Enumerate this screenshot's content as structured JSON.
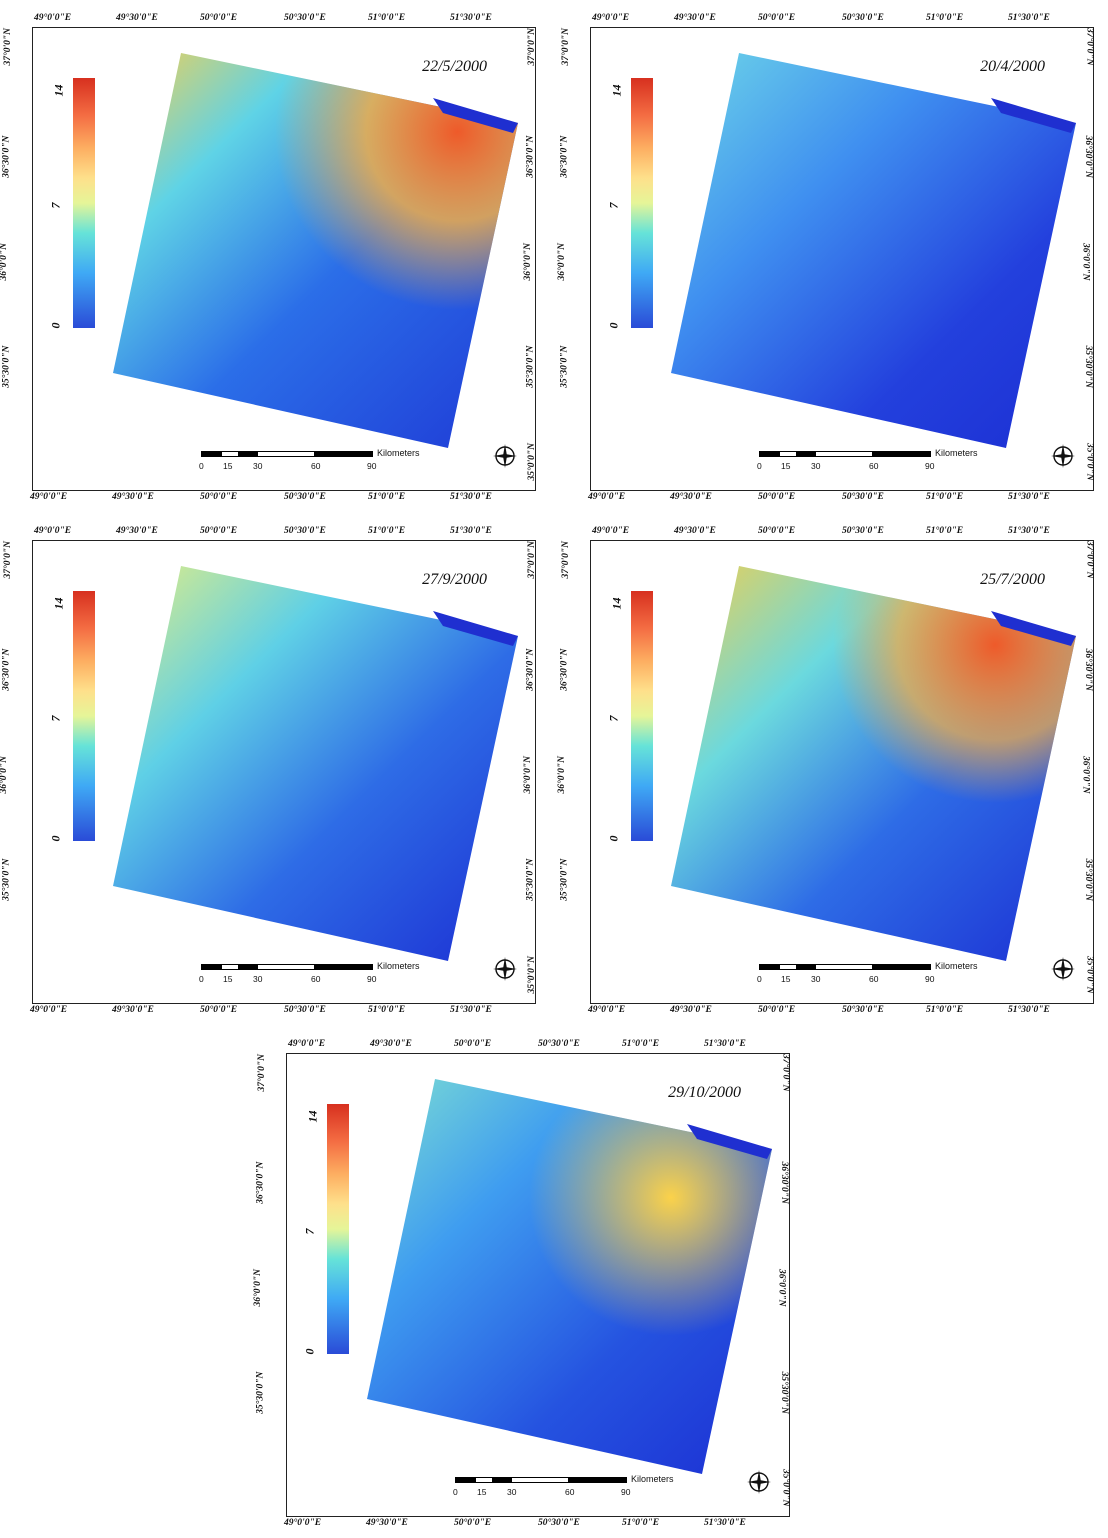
{
  "panels": [
    {
      "date": "22/5/2000",
      "top_ticks": [
        "49°0'0\"E",
        "49°30'0\"E",
        "50°0'0\"E",
        "50°30'0\"E",
        "51°0'0\"E",
        "51°30'0\"E"
      ],
      "bottom_ticks": [
        "49°0'0\"E",
        "49°30'0\"E",
        "50°0'0\"E",
        "50°30'0\"E",
        "51°0'0\"E",
        "51°30'0\"E"
      ],
      "left_ticks": [
        "37°0'0\"N",
        "36°30'0\"N",
        "36°0'0\"N",
        "35°30'0\"N"
      ],
      "right_ticks": [
        "37°0'0\"N",
        "36°30'0\"N",
        "36°0'0\"N",
        "35°30'0\"N",
        "35°0'0\"N"
      ],
      "legend": {
        "max": "14",
        "mid": "7",
        "min": "0"
      },
      "scale": {
        "ticks": [
          "0",
          "15",
          "30",
          "60",
          "90"
        ],
        "unit": "Kilometers"
      }
    },
    {
      "date": "20/4/2000",
      "top_ticks": [
        "49°0'0\"E",
        "49°30'0\"E",
        "50°0'0\"E",
        "50°30'0\"E",
        "51°0'0\"E",
        "51°30'0\"E"
      ],
      "bottom_ticks": [
        "49°0'0\"E",
        "49°30'0\"E",
        "50°0'0\"E",
        "50°30'0\"E",
        "51°0'0\"E",
        "51°30'0\"E"
      ],
      "left_ticks": [
        "37°0'0\"N",
        "36°30'0\"N",
        "36°0'0\"N",
        "35°30'0\"N"
      ],
      "right_ticks": [
        "37°0'0\"N",
        "36°30'0\"N",
        "36°0'0\"N",
        "35°30'0\"N",
        "35°0'0\"N"
      ],
      "legend": {
        "max": "14",
        "mid": "7",
        "min": "0"
      },
      "scale": {
        "ticks": [
          "0",
          "15",
          "30",
          "60",
          "90"
        ],
        "unit": "Kilometers"
      }
    },
    {
      "date": "27/9/2000",
      "top_ticks": [
        "49°0'0\"E",
        "49°30'0\"E",
        "50°0'0\"E",
        "50°30'0\"E",
        "51°0'0\"E",
        "51°30'0\"E"
      ],
      "bottom_ticks": [
        "49°0'0\"E",
        "49°30'0\"E",
        "50°0'0\"E",
        "50°30'0\"E",
        "51°0'0\"E",
        "51°30'0\"E"
      ],
      "left_ticks": [
        "37°0'0\"N",
        "36°30'0\"N",
        "36°0'0\"N",
        "35°30'0\"N"
      ],
      "right_ticks": [
        "37°0'0\"N",
        "36°30'0\"N",
        "36°0'0\"N",
        "35°30'0\"N",
        "35°0'0\"N"
      ],
      "legend": {
        "max": "14",
        "mid": "7",
        "min": "0"
      },
      "scale": {
        "ticks": [
          "0",
          "15",
          "30",
          "60",
          "90"
        ],
        "unit": "Kilometers"
      }
    },
    {
      "date": "25/7/2000",
      "top_ticks": [
        "49°0'0\"E",
        "49°30'0\"E",
        "50°0'0\"E",
        "50°30'0\"E",
        "51°0'0\"E",
        "51°30'0\"E"
      ],
      "bottom_ticks": [
        "49°0'0\"E",
        "49°30'0\"E",
        "50°0'0\"E",
        "50°30'0\"E",
        "51°0'0\"E",
        "51°30'0\"E"
      ],
      "left_ticks": [
        "37°0'0\"N",
        "36°30'0\"N",
        "36°0'0\"N",
        "35°30'0\"N"
      ],
      "right_ticks": [
        "37°0'0\"N",
        "36°30'0\"N",
        "36°0'0\"N",
        "35°30'0\"N",
        "35°0'0\"N"
      ],
      "legend": {
        "max": "14",
        "mid": "7",
        "min": "0"
      },
      "scale": {
        "ticks": [
          "0",
          "15",
          "30",
          "60",
          "90"
        ],
        "unit": "Kilometers"
      }
    },
    {
      "date": "29/10/2000",
      "top_ticks": [
        "49°0'0\"E",
        "49°30'0\"E",
        "50°0'0\"E",
        "50°30'0\"E",
        "51°0'0\"E",
        "51°30'0\"E"
      ],
      "bottom_ticks": [
        "49°0'0\"E",
        "49°30'0\"E",
        "50°0'0\"E",
        "50°30'0\"E",
        "51°0'0\"E",
        "51°30'0\"E"
      ],
      "left_ticks": [
        "37°0'0\"N",
        "36°30'0\"N",
        "36°0'0\"N",
        "35°30'0\"N"
      ],
      "right_ticks": [
        "37°0'0\"N",
        "36°30'0\"N",
        "36°0'0\"N",
        "35°30'0\"N",
        "35°0'0\"N"
      ],
      "legend": {
        "max": "14",
        "mid": "7",
        "min": "0"
      },
      "scale": {
        "ticks": [
          "0",
          "15",
          "30",
          "60",
          "90"
        ],
        "unit": "Kilometers"
      }
    }
  ],
  "colors": {
    "high": "#d7301f",
    "mid": "#fee08b",
    "low": "#2a4bd7",
    "sea": "#1f2fd0"
  }
}
